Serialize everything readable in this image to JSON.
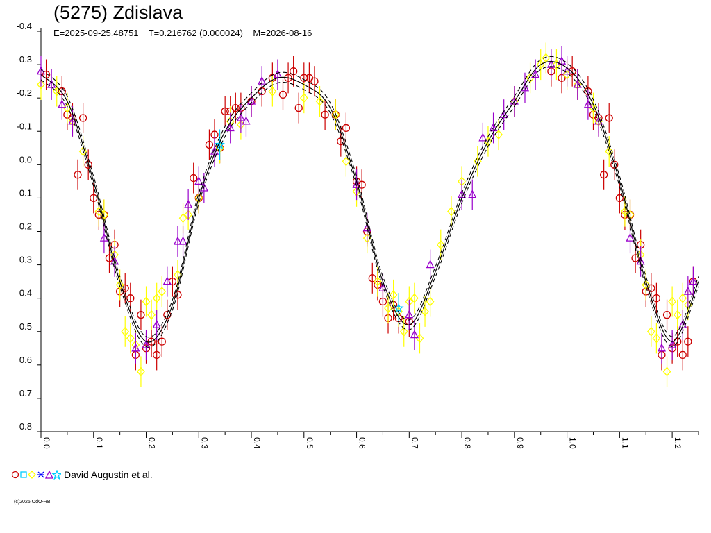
{
  "title": "(5275) Zdislava",
  "subtitle": "E=2025-09-25.48751    T=0.216762 (0.000024)    M=2026-08-16",
  "legend": {
    "label": "David Augustin et al."
  },
  "copyright": "(c)2025 OdO-RB",
  "colors": {
    "red": "#cc0000",
    "yellow": "#ffff00",
    "purple": "#9900cc",
    "cyan": "#00ccff",
    "blue": "#0000ff",
    "curve": "#000000"
  },
  "chart_data": {
    "type": "scatter",
    "xlim": [
      0,
      1.25
    ],
    "ylim": [
      -0.4,
      0.8
    ],
    "y_inverted": true,
    "xticks": [
      "0.0",
      "0.1",
      "0.2",
      "0.3",
      "0.4",
      "0.5",
      "0.6",
      "0.7",
      "0.8",
      "0.9",
      "1.0",
      "1.1",
      "1.2"
    ],
    "yticks": [
      "-0.4",
      "-0.3",
      "-0.2",
      "-0.1",
      "0.0",
      "0.1",
      "0.2",
      "0.3",
      "0.4",
      "0.5",
      "0.6",
      "0.7",
      "0.8"
    ],
    "legend_placement": "bottom-left",
    "fit_curve": {
      "points": [
        [
          0.0,
          -0.27
        ],
        [
          0.05,
          -0.19
        ],
        [
          0.1,
          0.05
        ],
        [
          0.15,
          0.35
        ],
        [
          0.2,
          0.53
        ],
        [
          0.25,
          0.42
        ],
        [
          0.3,
          0.1
        ],
        [
          0.35,
          -0.1
        ],
        [
          0.4,
          -0.2
        ],
        [
          0.45,
          -0.26
        ],
        [
          0.5,
          -0.24
        ],
        [
          0.55,
          -0.17
        ],
        [
          0.6,
          0.05
        ],
        [
          0.65,
          0.35
        ],
        [
          0.7,
          0.48
        ],
        [
          0.75,
          0.32
        ],
        [
          0.8,
          0.1
        ],
        [
          0.85,
          -0.07
        ],
        [
          0.9,
          -0.19
        ],
        [
          0.95,
          -0.3
        ],
        [
          1.0,
          -0.29
        ],
        [
          1.05,
          -0.18
        ],
        [
          1.1,
          0.05
        ],
        [
          1.15,
          0.35
        ],
        [
          1.2,
          0.53
        ],
        [
          1.25,
          0.35
        ]
      ],
      "band": 0.015
    },
    "series": [
      {
        "marker": "circle",
        "color": "#cc0000",
        "points": [
          [
            0.01,
            -0.27
          ],
          [
            0.04,
            -0.22
          ],
          [
            0.05,
            -0.15
          ],
          [
            0.06,
            -0.14
          ],
          [
            0.07,
            0.03
          ],
          [
            0.08,
            -0.14
          ],
          [
            0.09,
            0.0
          ],
          [
            0.1,
            0.1
          ],
          [
            0.11,
            0.15
          ],
          [
            0.12,
            0.15
          ],
          [
            0.13,
            0.28
          ],
          [
            0.14,
            0.24
          ],
          [
            0.15,
            0.38
          ],
          [
            0.16,
            0.37
          ],
          [
            0.17,
            0.4
          ],
          [
            0.18,
            0.57
          ],
          [
            0.19,
            0.45
          ],
          [
            0.2,
            0.55
          ],
          [
            0.21,
            0.53
          ],
          [
            0.22,
            0.57
          ],
          [
            0.23,
            0.53
          ],
          [
            0.24,
            0.45
          ],
          [
            0.25,
            0.35
          ],
          [
            0.26,
            0.39
          ],
          [
            0.29,
            0.04
          ],
          [
            0.3,
            0.1
          ],
          [
            0.32,
            -0.06
          ],
          [
            0.33,
            -0.09
          ],
          [
            0.34,
            -0.05
          ],
          [
            0.35,
            -0.16
          ],
          [
            0.36,
            -0.16
          ],
          [
            0.37,
            -0.17
          ],
          [
            0.38,
            -0.17
          ],
          [
            0.4,
            -0.19
          ],
          [
            0.42,
            -0.22
          ],
          [
            0.44,
            -0.26
          ],
          [
            0.46,
            -0.21
          ],
          [
            0.47,
            -0.26
          ],
          [
            0.48,
            -0.28
          ],
          [
            0.49,
            -0.17
          ],
          [
            0.5,
            -0.26
          ],
          [
            0.51,
            -0.26
          ],
          [
            0.52,
            -0.25
          ],
          [
            0.54,
            -0.15
          ],
          [
            0.56,
            -0.15
          ],
          [
            0.57,
            -0.07
          ],
          [
            0.58,
            -0.11
          ],
          [
            0.6,
            0.05
          ],
          [
            0.61,
            0.06
          ],
          [
            0.62,
            0.2
          ],
          [
            0.63,
            0.34
          ],
          [
            0.64,
            0.36
          ],
          [
            0.65,
            0.41
          ],
          [
            0.66,
            0.46
          ],
          [
            0.67,
            0.42
          ],
          [
            0.68,
            0.46
          ],
          [
            0.7,
            0.47
          ],
          [
            0.97,
            -0.28
          ],
          [
            0.99,
            -0.26
          ],
          [
            1.01,
            -0.28
          ],
          [
            1.04,
            -0.22
          ],
          [
            1.05,
            -0.15
          ],
          [
            1.06,
            -0.14
          ],
          [
            1.07,
            0.03
          ],
          [
            1.08,
            -0.14
          ],
          [
            1.09,
            0.0
          ],
          [
            1.1,
            0.1
          ],
          [
            1.11,
            0.15
          ],
          [
            1.12,
            0.15
          ],
          [
            1.13,
            0.28
          ],
          [
            1.14,
            0.24
          ],
          [
            1.15,
            0.38
          ],
          [
            1.16,
            0.37
          ],
          [
            1.17,
            0.4
          ],
          [
            1.18,
            0.57
          ],
          [
            1.19,
            0.45
          ],
          [
            1.2,
            0.55
          ],
          [
            1.21,
            0.53
          ],
          [
            1.22,
            0.57
          ],
          [
            1.23,
            0.53
          ],
          [
            1.24,
            0.35
          ]
        ]
      },
      {
        "marker": "diamond",
        "color": "#ffff00",
        "points": [
          [
            0.0,
            -0.24
          ],
          [
            0.03,
            -0.22
          ],
          [
            0.05,
            -0.17
          ],
          [
            0.06,
            -0.13
          ],
          [
            0.08,
            -0.04
          ],
          [
            0.11,
            0.14
          ],
          [
            0.12,
            0.15
          ],
          [
            0.14,
            0.27
          ],
          [
            0.15,
            0.36
          ],
          [
            0.16,
            0.5
          ],
          [
            0.17,
            0.52
          ],
          [
            0.18,
            0.54
          ],
          [
            0.19,
            0.62
          ],
          [
            0.2,
            0.41
          ],
          [
            0.21,
            0.45
          ],
          [
            0.22,
            0.4
          ],
          [
            0.23,
            0.38
          ],
          [
            0.26,
            0.33
          ],
          [
            0.27,
            0.16
          ],
          [
            0.28,
            0.15
          ],
          [
            0.3,
            0.1
          ],
          [
            0.34,
            -0.05
          ],
          [
            0.36,
            -0.13
          ],
          [
            0.38,
            -0.12
          ],
          [
            0.44,
            -0.22
          ],
          [
            0.5,
            -0.2
          ],
          [
            0.53,
            -0.19
          ],
          [
            0.56,
            -0.15
          ],
          [
            0.58,
            -0.01
          ],
          [
            0.6,
            0.08
          ],
          [
            0.62,
            0.22
          ],
          [
            0.64,
            0.35
          ],
          [
            0.66,
            0.43
          ],
          [
            0.67,
            0.39
          ],
          [
            0.68,
            0.44
          ],
          [
            0.69,
            0.5
          ],
          [
            0.7,
            0.41
          ],
          [
            0.71,
            0.4
          ],
          [
            0.72,
            0.52
          ],
          [
            0.73,
            0.44
          ],
          [
            0.74,
            0.41
          ],
          [
            0.76,
            0.24
          ],
          [
            0.78,
            0.14
          ],
          [
            0.8,
            0.05
          ],
          [
            0.83,
            -0.01
          ],
          [
            0.85,
            -0.07
          ],
          [
            0.87,
            -0.09
          ],
          [
            0.9,
            -0.19
          ],
          [
            0.93,
            -0.26
          ],
          [
            0.95,
            -0.3
          ],
          [
            0.96,
            -0.32
          ],
          [
            0.98,
            -0.3
          ],
          [
            1.0,
            -0.27
          ],
          [
            1.02,
            -0.24
          ],
          [
            1.05,
            -0.17
          ],
          [
            1.06,
            -0.13
          ],
          [
            1.08,
            -0.04
          ],
          [
            1.11,
            0.14
          ],
          [
            1.12,
            0.15
          ],
          [
            1.14,
            0.27
          ],
          [
            1.15,
            0.36
          ],
          [
            1.16,
            0.5
          ],
          [
            1.17,
            0.52
          ],
          [
            1.19,
            0.62
          ],
          [
            1.2,
            0.41
          ],
          [
            1.21,
            0.45
          ],
          [
            1.22,
            0.4
          ],
          [
            1.23,
            0.42
          ]
        ]
      },
      {
        "marker": "triangle",
        "color": "#9900cc",
        "points": [
          [
            0.0,
            -0.28
          ],
          [
            0.02,
            -0.24
          ],
          [
            0.04,
            -0.18
          ],
          [
            0.06,
            -0.13
          ],
          [
            0.12,
            0.22
          ],
          [
            0.14,
            0.29
          ],
          [
            0.18,
            0.55
          ],
          [
            0.2,
            0.54
          ],
          [
            0.22,
            0.48
          ],
          [
            0.24,
            0.35
          ],
          [
            0.26,
            0.23
          ],
          [
            0.27,
            0.23
          ],
          [
            0.28,
            0.12
          ],
          [
            0.3,
            0.05
          ],
          [
            0.31,
            0.07
          ],
          [
            0.33,
            -0.04
          ],
          [
            0.36,
            -0.11
          ],
          [
            0.38,
            -0.14
          ],
          [
            0.39,
            -0.13
          ],
          [
            0.4,
            -0.19
          ],
          [
            0.42,
            -0.25
          ],
          [
            0.45,
            -0.27
          ],
          [
            0.6,
            0.06
          ],
          [
            0.62,
            0.19
          ],
          [
            0.65,
            0.37
          ],
          [
            0.7,
            0.45
          ],
          [
            0.71,
            0.51
          ],
          [
            0.74,
            0.3
          ],
          [
            0.8,
            0.09
          ],
          [
            0.82,
            0.09
          ],
          [
            0.84,
            -0.08
          ],
          [
            0.86,
            -0.11
          ],
          [
            0.88,
            -0.15
          ],
          [
            0.9,
            -0.19
          ],
          [
            0.92,
            -0.23
          ],
          [
            0.94,
            -0.27
          ],
          [
            0.97,
            -0.3
          ],
          [
            0.99,
            -0.31
          ],
          [
            1.0,
            -0.28
          ],
          [
            1.02,
            -0.24
          ],
          [
            1.04,
            -0.18
          ],
          [
            1.06,
            -0.13
          ],
          [
            1.12,
            0.22
          ],
          [
            1.14,
            0.29
          ],
          [
            1.18,
            0.55
          ],
          [
            1.2,
            0.54
          ],
          [
            1.22,
            0.48
          ],
          [
            1.23,
            0.38
          ],
          [
            1.24,
            0.35
          ]
        ]
      },
      {
        "marker": "star",
        "color": "#00ccff",
        "points": [
          [
            0.34,
            -0.06
          ],
          [
            0.68,
            0.43
          ]
        ]
      }
    ]
  }
}
